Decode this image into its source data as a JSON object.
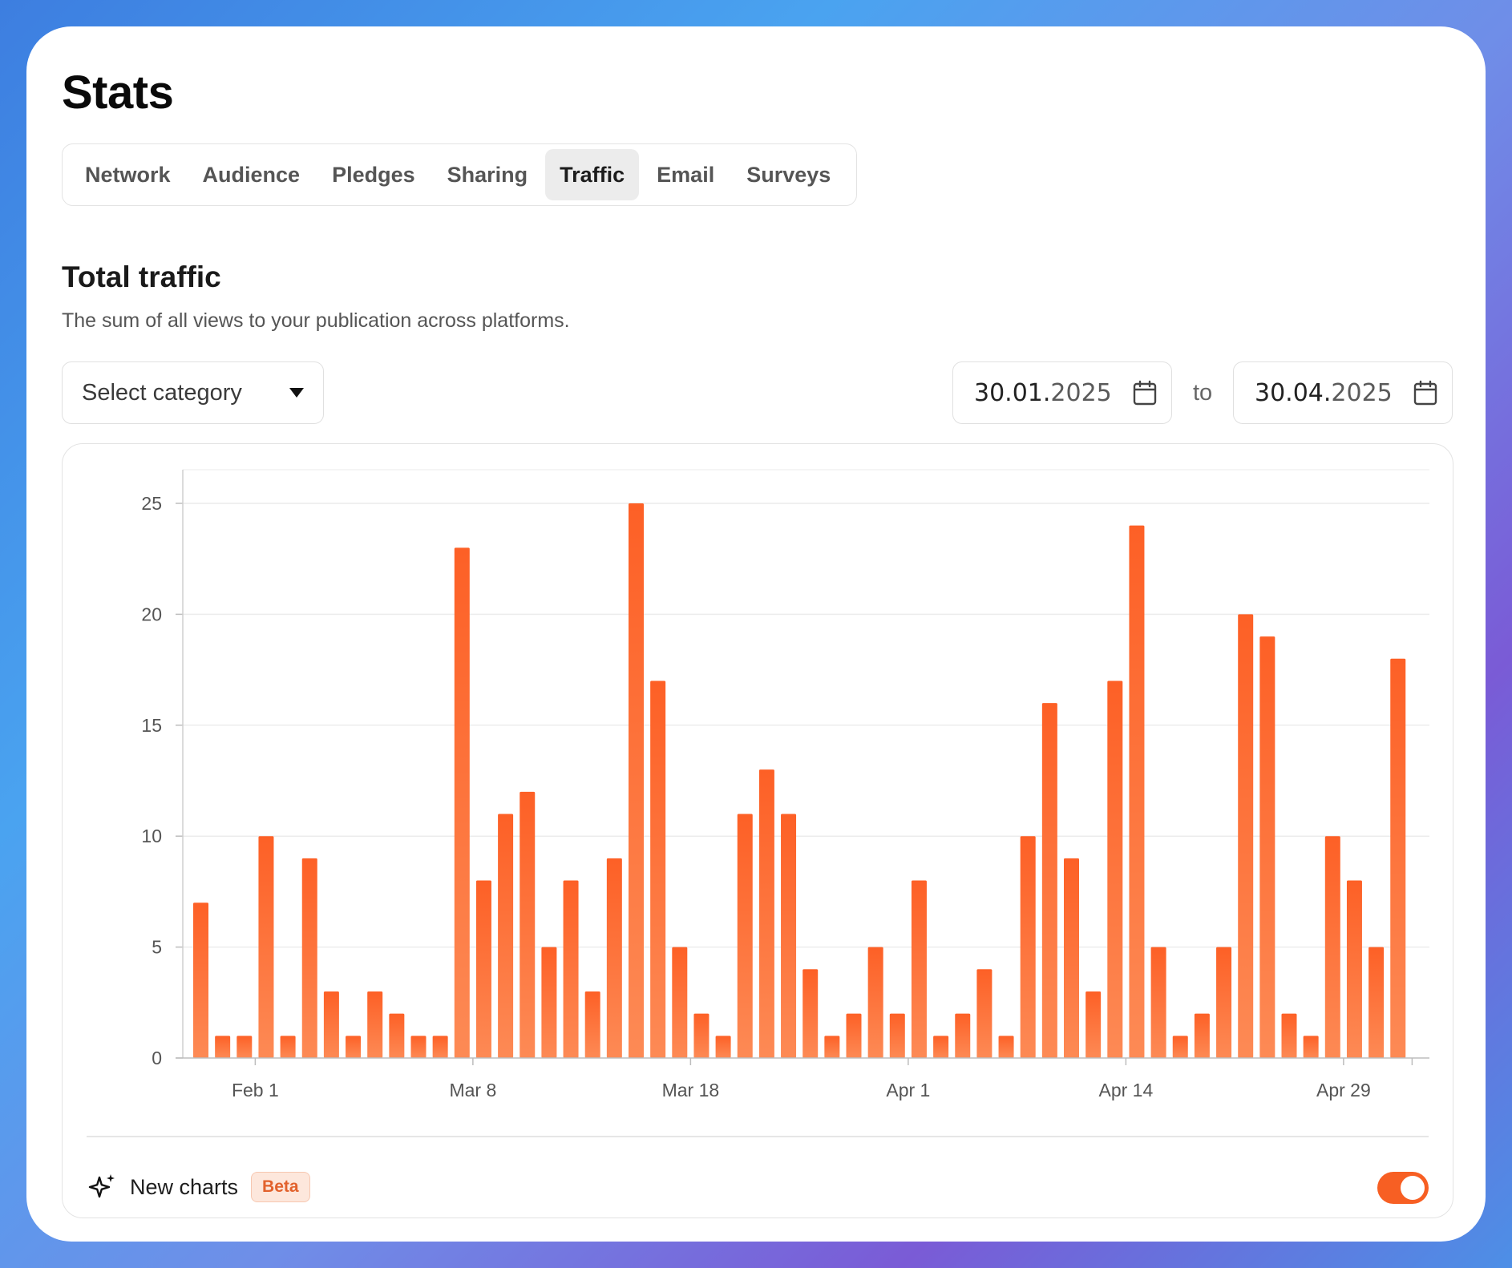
{
  "page_title": "Stats",
  "tabs": [
    {
      "label": "Network",
      "active": false
    },
    {
      "label": "Audience",
      "active": false
    },
    {
      "label": "Pledges",
      "active": false
    },
    {
      "label": "Sharing",
      "active": false
    },
    {
      "label": "Traffic",
      "active": true
    },
    {
      "label": "Email",
      "active": false
    },
    {
      "label": "Surveys",
      "active": false
    }
  ],
  "section": {
    "title": "Total traffic",
    "subtitle": "The sum of all views to your publication across platforms."
  },
  "filters": {
    "category_placeholder": "Select category",
    "date_from": {
      "day_month": "30.01.",
      "year": "2025"
    },
    "date_to": {
      "day_month": "30.04.",
      "year": "2025"
    },
    "to_label": "to"
  },
  "footer": {
    "label": "New charts",
    "badge": "Beta",
    "toggle_on": true
  },
  "colors": {
    "accent": "#f75f23",
    "bar_top": "#fd6026",
    "bar_bottom": "#fd8a55"
  },
  "chart_data": {
    "type": "bar",
    "title": "",
    "xlabel": "",
    "ylabel": "",
    "ylim": [
      0,
      25
    ],
    "yticks": [
      0,
      5,
      10,
      15,
      20,
      25
    ],
    "xtick_labels": [
      "Feb 1",
      "Mar 8",
      "Mar 18",
      "Apr 1",
      "Apr 14",
      "Apr 29"
    ],
    "xtick_bar_index": [
      2.5,
      12.5,
      22.5,
      32.5,
      42.5,
      52.5
    ],
    "grid": true,
    "values": [
      7,
      1,
      1,
      10,
      1,
      9,
      3,
      1,
      3,
      2,
      1,
      1,
      23,
      8,
      11,
      12,
      5,
      8,
      3,
      9,
      25,
      17,
      5,
      2,
      1,
      11,
      13,
      11,
      4,
      1,
      2,
      5,
      2,
      8,
      1,
      2,
      4,
      1,
      10,
      16,
      9,
      3,
      17,
      24,
      5,
      1,
      2,
      5,
      20,
      19,
      2,
      1,
      10,
      8,
      5,
      18
    ]
  }
}
